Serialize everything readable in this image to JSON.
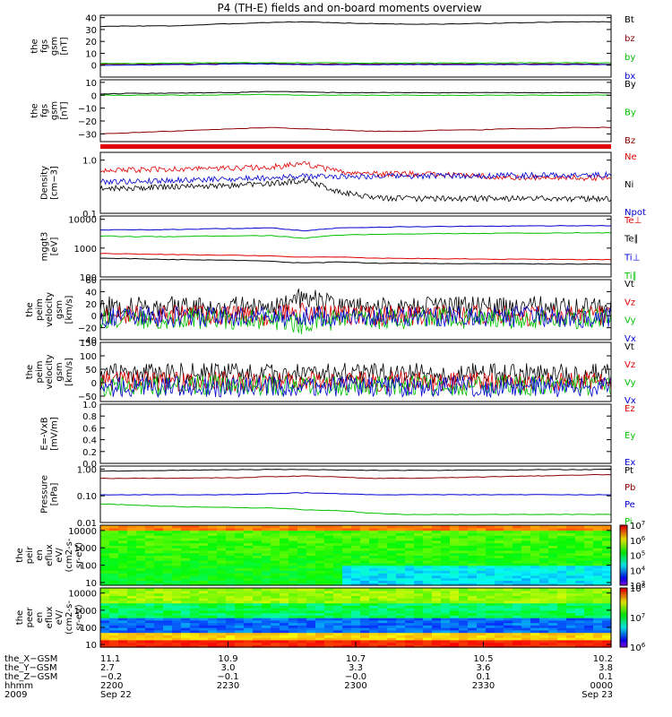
{
  "title": "P4 (TH-E) fields and on-board moments overview",
  "colors": {
    "black": "#000000",
    "red": "#e00000",
    "dred": "#8b0000",
    "green": "#00c000",
    "blue": "#0000d0",
    "gray": "#333333"
  },
  "chart_data": [
    {
      "id": "fgs_gsm",
      "type": "line",
      "ylabel": [
        "the",
        "fgs",
        "gsm",
        "[nT]"
      ],
      "ylim": [
        -10,
        42
      ],
      "yticks": [
        {
          "v": 0,
          "label": "0"
        },
        {
          "v": 10,
          "label": "10"
        },
        {
          "v": 20,
          "label": "20"
        },
        {
          "v": 30,
          "label": "30"
        },
        {
          "v": 40,
          "label": "40"
        }
      ],
      "series": [
        {
          "name": "Bt",
          "color": "black",
          "values": [
            32.5,
            33,
            33,
            34,
            35,
            36,
            36.5,
            35.5,
            35,
            34.5,
            34.5,
            35,
            35.5,
            36,
            36.5,
            36.5
          ]
        },
        {
          "name": "bz",
          "color": "dred",
          "values": [
            1,
            1,
            1,
            1,
            1.5,
            1.5,
            1,
            1,
            1,
            1,
            1,
            1,
            1,
            1,
            1,
            1
          ]
        },
        {
          "name": "by",
          "color": "green",
          "values": [
            1.5,
            1.5,
            1.8,
            2,
            2,
            2.2,
            2,
            2,
            1.8,
            1.8,
            1.8,
            2,
            2,
            2,
            2,
            2
          ]
        },
        {
          "name": "bx",
          "color": "blue",
          "values": [
            0,
            0,
            0.5,
            0.5,
            1,
            1,
            0.5,
            0.5,
            0.5,
            0.5,
            0.5,
            0.5,
            0.5,
            0.5,
            0.5,
            0.5
          ]
        }
      ]
    },
    {
      "id": "fgs_gsm_bxby",
      "type": "line",
      "ylabel": [
        "the",
        "fgs",
        "gsm",
        "[nT]"
      ],
      "ylim": [
        -36,
        12
      ],
      "yticks": [
        {
          "v": -30,
          "label": "−30"
        },
        {
          "v": -20,
          "label": "−20"
        },
        {
          "v": -10,
          "label": "−10"
        },
        {
          "v": 0,
          "label": "0"
        },
        {
          "v": 10,
          "label": "10"
        }
      ],
      "series": [
        {
          "name": "By",
          "color": "black",
          "values": [
            1,
            1.5,
            1.5,
            2,
            2,
            3,
            2.5,
            2,
            2,
            2,
            2,
            2,
            2,
            2,
            2,
            2
          ]
        },
        {
          "name": "By",
          "color": "green",
          "values": [
            0,
            0,
            0,
            0,
            0.5,
            0.5,
            0,
            0,
            0,
            0,
            0,
            0,
            0,
            0,
            0,
            0
          ]
        },
        {
          "name": "Bz",
          "color": "dred",
          "values": [
            -30,
            -29,
            -28,
            -27,
            -26,
            -25,
            -26,
            -27,
            -28,
            -28,
            -27,
            -27,
            -26,
            -26,
            -25,
            -25
          ]
        }
      ]
    },
    {
      "id": "density",
      "type": "line",
      "log": true,
      "ylabel": [
        "Density",
        "[cm−3]"
      ],
      "ylim": [
        0.1,
        1.4
      ],
      "yticks": [
        {
          "v": 0.1,
          "label": "0.1"
        },
        {
          "v": 1.0,
          "label": "1.0"
        }
      ],
      "series": [
        {
          "name": "Ne",
          "color": "red",
          "values": [
            0.66,
            0.65,
            0.68,
            0.7,
            0.7,
            0.75,
            0.85,
            0.6,
            0.55,
            0.55,
            0.55,
            0.5,
            0.48,
            0.48,
            0.47,
            0.46
          ]
        },
        {
          "name": "Ni",
          "color": "black",
          "values": [
            0.3,
            0.3,
            0.32,
            0.32,
            0.34,
            0.36,
            0.42,
            0.25,
            0.2,
            0.19,
            0.19,
            0.19,
            0.19,
            0.19,
            0.19,
            0.19
          ]
        },
        {
          "name": "Npot",
          "color": "blue",
          "values": [
            0.4,
            0.4,
            0.42,
            0.43,
            0.45,
            0.47,
            0.5,
            0.5,
            0.5,
            0.5,
            0.51,
            0.51,
            0.52,
            0.52,
            0.52,
            0.53
          ]
        }
      ]
    },
    {
      "id": "temperature",
      "type": "line",
      "log": true,
      "ylabel": [
        "mggt3",
        "[eV]"
      ],
      "ylim": [
        100,
        13000
      ],
      "yticks": [
        {
          "v": 100,
          "label": "100"
        },
        {
          "v": 1000,
          "label": "1000"
        },
        {
          "v": 10000,
          "label": "10000"
        }
      ],
      "series": [
        {
          "name": "Te⊥",
          "color": "red",
          "values": [
            650,
            630,
            600,
            580,
            560,
            540,
            480,
            500,
            450,
            440,
            430,
            420,
            410,
            410,
            400,
            400
          ]
        },
        {
          "name": "Te∥",
          "color": "black",
          "values": [
            450,
            430,
            400,
            390,
            370,
            350,
            300,
            330,
            300,
            300,
            290,
            290,
            285,
            285,
            280,
            280
          ]
        },
        {
          "name": "Ti⊥",
          "color": "blue",
          "values": [
            4300,
            4300,
            4400,
            4600,
            4800,
            5000,
            4000,
            5000,
            5300,
            5500,
            5600,
            5700,
            5800,
            5900,
            6000,
            6000
          ]
        },
        {
          "name": "Ti∥",
          "color": "green",
          "values": [
            2600,
            2500,
            2500,
            2600,
            2700,
            2700,
            2200,
            2800,
            3000,
            3100,
            3200,
            3200,
            3300,
            3300,
            3400,
            3400
          ]
        }
      ]
    },
    {
      "id": "peim_velocity_1",
      "type": "line",
      "ylabel": [
        "the",
        "peim",
        "velocity",
        "gsm",
        "[km/s]"
      ],
      "ylim": [
        -40,
        60
      ],
      "yticks": [
        {
          "v": -40,
          "label": "−40"
        },
        {
          "v": -20,
          "label": "−20"
        },
        {
          "v": 0,
          "label": "0"
        },
        {
          "v": 20,
          "label": "20"
        },
        {
          "v": 40,
          "label": "40"
        },
        {
          "v": 60,
          "label": "60"
        }
      ],
      "series": [
        {
          "name": "Vt",
          "color": "black",
          "values": [
            15,
            15,
            15,
            15,
            15,
            15,
            30,
            15,
            15,
            15,
            15,
            15,
            15,
            15,
            15,
            15
          ]
        },
        {
          "name": "Vz",
          "color": "red",
          "values": [
            0,
            0,
            0,
            0,
            0,
            0,
            5,
            0,
            0,
            0,
            0,
            0,
            0,
            0,
            0,
            0
          ]
        },
        {
          "name": "Vy",
          "color": "green",
          "values": [
            -5,
            -5,
            -5,
            -5,
            -5,
            -5,
            -15,
            -5,
            -5,
            -5,
            -5,
            -5,
            -5,
            -5,
            -5,
            -5
          ]
        },
        {
          "name": "Vx",
          "color": "blue",
          "values": [
            -2,
            -2,
            -2,
            -2,
            -2,
            -2,
            0,
            -2,
            -2,
            -2,
            -2,
            -2,
            -2,
            -2,
            -2,
            -2
          ]
        }
      ]
    },
    {
      "id": "peim_velocity_2",
      "type": "line",
      "ylabel": [
        "the",
        "peim",
        "velocity",
        "gsm",
        "[km/s]"
      ],
      "ylim": [
        -70,
        150
      ],
      "yticks": [
        {
          "v": -50,
          "label": "−50"
        },
        {
          "v": 0,
          "label": "0"
        },
        {
          "v": 50,
          "label": "50"
        },
        {
          "v": 100,
          "label": "100"
        },
        {
          "v": 150,
          "label": "150"
        }
      ],
      "series": [
        {
          "name": "Vt",
          "color": "black",
          "values": [
            35,
            35,
            35,
            35,
            35,
            35,
            45,
            35,
            35,
            35,
            35,
            35,
            35,
            35,
            35,
            35
          ]
        },
        {
          "name": "Vz",
          "color": "red",
          "values": [
            5,
            5,
            5,
            5,
            5,
            5,
            5,
            5,
            5,
            5,
            5,
            5,
            5,
            5,
            5,
            5
          ]
        },
        {
          "name": "Vy",
          "color": "green",
          "values": [
            -10,
            -10,
            -10,
            -10,
            -10,
            -10,
            -10,
            -10,
            -10,
            -10,
            -10,
            -10,
            -10,
            -10,
            -10,
            -10
          ]
        },
        {
          "name": "Vx",
          "color": "blue",
          "values": [
            -15,
            -15,
            -15,
            -15,
            -15,
            -15,
            -15,
            -15,
            -15,
            -15,
            -15,
            -15,
            -15,
            -15,
            -15,
            -15
          ]
        }
      ]
    },
    {
      "id": "e_vxb",
      "type": "line",
      "ylabel": [
        "E=-VxB",
        "[mV/m]"
      ],
      "ylim": [
        0,
        1.0
      ],
      "yticks": [
        {
          "v": 0.0,
          "label": "0.0"
        },
        {
          "v": 0.2,
          "label": "0.2"
        },
        {
          "v": 0.4,
          "label": "0.4"
        },
        {
          "v": 0.6,
          "label": "0.6"
        },
        {
          "v": 0.8,
          "label": "0.8"
        },
        {
          "v": 1.0,
          "label": "1.0"
        }
      ],
      "series": [
        {
          "name": "Ez",
          "color": "red",
          "values": []
        },
        {
          "name": "Ey",
          "color": "green",
          "values": []
        },
        {
          "name": "Ex",
          "color": "blue",
          "values": []
        }
      ]
    },
    {
      "id": "pressure",
      "type": "line",
      "log": true,
      "ylabel": [
        "Pressure",
        "[nPa]"
      ],
      "ylim": [
        0.01,
        1.3
      ],
      "yticks": [
        {
          "v": 0.01,
          "label": "0.01"
        },
        {
          "v": 0.1,
          "label": "0.10"
        },
        {
          "v": 1.0,
          "label": "1.00"
        }
      ],
      "series": [
        {
          "name": "Pt",
          "color": "black",
          "values": [
            0.85,
            0.87,
            0.9,
            0.92,
            0.95,
            0.97,
            0.95,
            0.93,
            0.9,
            0.9,
            0.9,
            0.92,
            0.93,
            0.95,
            0.96,
            0.97
          ]
        },
        {
          "name": "Pb",
          "color": "dred",
          "values": [
            0.45,
            0.45,
            0.45,
            0.47,
            0.48,
            0.52,
            0.55,
            0.5,
            0.45,
            0.45,
            0.47,
            0.5,
            0.53,
            0.56,
            0.6,
            0.62
          ]
        },
        {
          "name": "Pe",
          "color": "blue",
          "values": [
            0.11,
            0.11,
            0.11,
            0.11,
            0.11,
            0.12,
            0.13,
            0.12,
            0.11,
            0.11,
            0.11,
            0.11,
            0.11,
            0.11,
            0.11,
            0.11
          ]
        },
        {
          "name": "Pi",
          "color": "green",
          "values": [
            0.05,
            0.045,
            0.04,
            0.038,
            0.036,
            0.035,
            0.03,
            0.028,
            0.022,
            0.02,
            0.02,
            0.02,
            0.02,
            0.02,
            0.02,
            0.02
          ]
        }
      ]
    },
    {
      "id": "peir_en_eflux",
      "type": "heatmap",
      "ylabel": [
        "the",
        "peir",
        "en",
        "eflux",
        "eV/",
        "(cm2-s-",
        "sr-eV)"
      ],
      "ylim": [
        7,
        20000
      ],
      "yticks": [
        {
          "v": 10,
          "label": "10"
        },
        {
          "v": 100,
          "label": "100"
        },
        {
          "v": 1000,
          "label": "1000"
        },
        {
          "v": 10000,
          "label": "10000"
        }
      ],
      "colorbar": {
        "min_exp": 3,
        "max_exp": 7
      }
    },
    {
      "id": "peer_en_eflux",
      "type": "heatmap",
      "ylabel": [
        "the",
        "peer",
        "en",
        "eflux",
        "eV/",
        "(cm2-s-",
        "sr-eV)"
      ],
      "ylim": [
        7,
        20000
      ],
      "yticks": [
        {
          "v": 10,
          "label": "10"
        },
        {
          "v": 100,
          "label": "100"
        },
        {
          "v": 1000,
          "label": "1000"
        },
        {
          "v": 10000,
          "label": "10000"
        }
      ],
      "colorbar": {
        "min_exp": 6,
        "max_exp": 8
      }
    }
  ],
  "xaxis": {
    "rows": [
      "the_X−GSM",
      "the_Y−GSM",
      "the_Z−GSM",
      "hhmm",
      "2009"
    ],
    "ticks": [
      {
        "cells": [
          "11.1",
          "2.7",
          "−0.2",
          "2200",
          "Sep 22"
        ]
      },
      {
        "cells": [
          "10.9",
          "3.0",
          "−0.1",
          "2230",
          ""
        ]
      },
      {
        "cells": [
          "10.7",
          "3.3",
          "−0.0",
          "2300",
          ""
        ]
      },
      {
        "cells": [
          "10.5",
          "3.6",
          "0.1",
          "2330",
          ""
        ]
      },
      {
        "cells": [
          "10.2",
          "3.8",
          "0.1",
          "0000",
          "Sep 23"
        ]
      }
    ]
  }
}
